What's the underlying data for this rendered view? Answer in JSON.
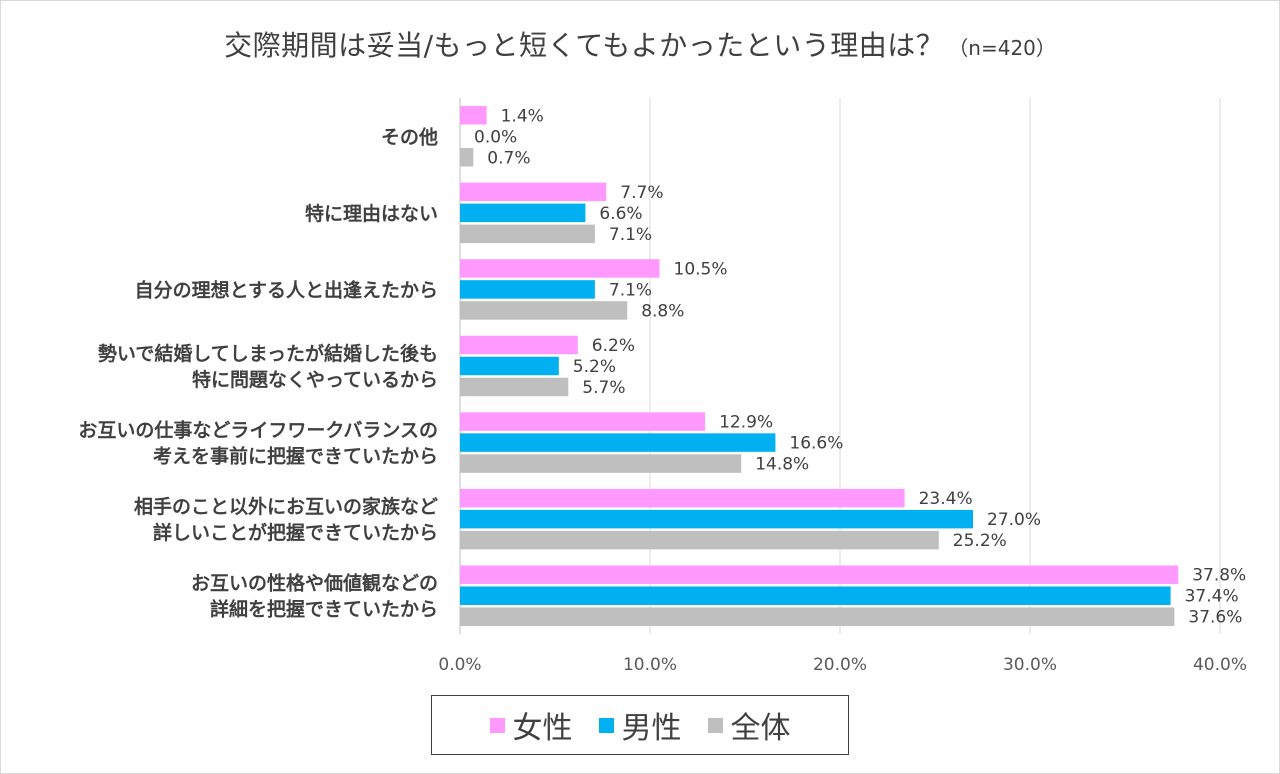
{
  "title": {
    "main": "交際期間は妥当/もっと短くてもよかったという理由は？",
    "note": "（n=420）"
  },
  "chart_data": {
    "type": "bar",
    "orientation": "horizontal",
    "categories": [
      [
        "その他"
      ],
      [
        "特に理由はない"
      ],
      [
        "自分の理想とする人と出逢えたから"
      ],
      [
        "勢いで結婚してしまったが結婚した後も",
        "特に問題なくやっているから"
      ],
      [
        "お互いの仕事などライフワークバランスの",
        "考えを事前に把握できていたから"
      ],
      [
        "相手のこと以外にお互いの家族など",
        "詳しいことが把握できていたから"
      ],
      [
        "お互いの性格や価値観などの",
        "詳細を把握できていたから"
      ]
    ],
    "series": [
      {
        "name": "女性",
        "color": "#ff99ff",
        "values": [
          1.4,
          7.7,
          10.5,
          6.2,
          12.9,
          23.4,
          37.8
        ],
        "labels": [
          "1.4%",
          "7.7%",
          "10.5%",
          "6.2%",
          "12.9%",
          "23.4%",
          "37.8%"
        ]
      },
      {
        "name": "男性",
        "color": "#00b0f0",
        "values": [
          0.0,
          6.6,
          7.1,
          5.2,
          16.6,
          27.0,
          37.4
        ],
        "labels": [
          "0.0%",
          "6.6%",
          "7.1%",
          "5.2%",
          "16.6%",
          "27.0%",
          "37.4%"
        ]
      },
      {
        "name": "全体",
        "color": "#bfbfbf",
        "values": [
          0.7,
          7.1,
          8.8,
          5.7,
          14.8,
          25.2,
          37.6
        ],
        "labels": [
          "0.7%",
          "7.1%",
          "8.8%",
          "5.7%",
          "14.8%",
          "25.2%",
          "37.6%"
        ]
      }
    ],
    "xlim": [
      0,
      40
    ],
    "xticks": [
      "0.0%",
      "10.0%",
      "20.0%",
      "30.0%",
      "40.0%"
    ],
    "grid": true,
    "legend_position": "bottom"
  }
}
